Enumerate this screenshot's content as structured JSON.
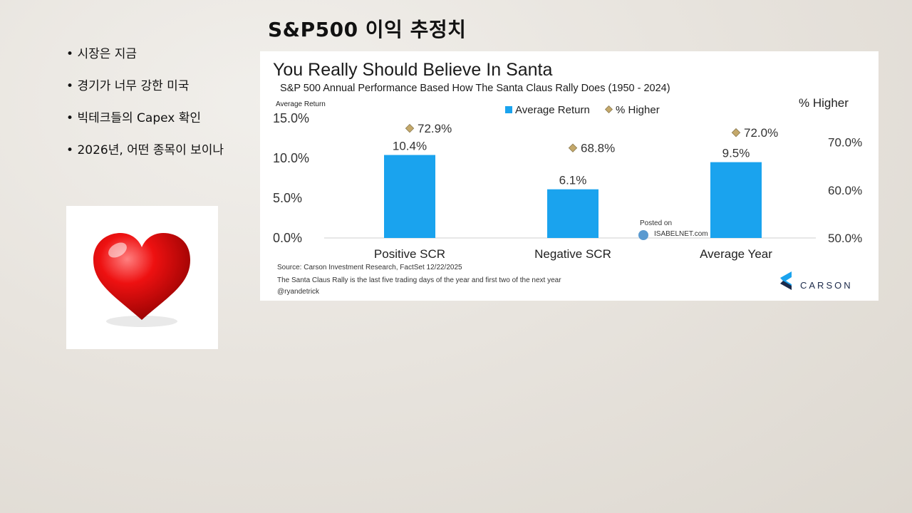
{
  "slide": {
    "title": "S&P500 이익 추정치",
    "bullets": [
      "시장은 지금",
      "경기가 너무 강한 미국",
      "빅테크들의 Capex 확인",
      "2026년, 어떤 종목이 보이나"
    ]
  },
  "chart_data": {
    "type": "bar",
    "title": "You Really Should Believe In Santa",
    "subtitle": "S&P 500 Annual Performance Based How The Santa Claus Rally Does (1950 - 2024)",
    "categories": [
      "Positive SCR",
      "Negative SCR",
      "Average Year"
    ],
    "series": [
      {
        "name": "Average Return",
        "type": "bar",
        "axis": "left",
        "color": "#1aa3ee",
        "values": [
          10.4,
          6.1,
          9.5
        ],
        "labels": [
          "10.4%",
          "6.1%",
          "9.5%"
        ]
      },
      {
        "name": "% Higher",
        "type": "scatter",
        "axis": "right",
        "color": "#c4a86a",
        "values": [
          72.9,
          68.8,
          72.0
        ],
        "labels": [
          "72.9%",
          "68.8%",
          "72.0%"
        ]
      }
    ],
    "left_axis": {
      "label": "Average Return",
      "ylim": [
        0,
        15
      ],
      "ticks": [
        "0.0%",
        "5.0%",
        "10.0%",
        "15.0%"
      ]
    },
    "right_axis": {
      "label": "% Higher",
      "ylim": [
        50,
        75
      ],
      "ticks": [
        "50.0%",
        "60.0%",
        "70.0%"
      ]
    },
    "legend_position": "top-center",
    "source": "Source: Carson Investment Research, FactSet 12/22/2025",
    "note": "The Santa Claus Rally is the last five trading days of the year and first two of the next year",
    "handle": "@ryandetrick",
    "watermark": {
      "line1": "Posted on",
      "line2": "ISABELNET.com"
    },
    "brand": "CARSON"
  }
}
